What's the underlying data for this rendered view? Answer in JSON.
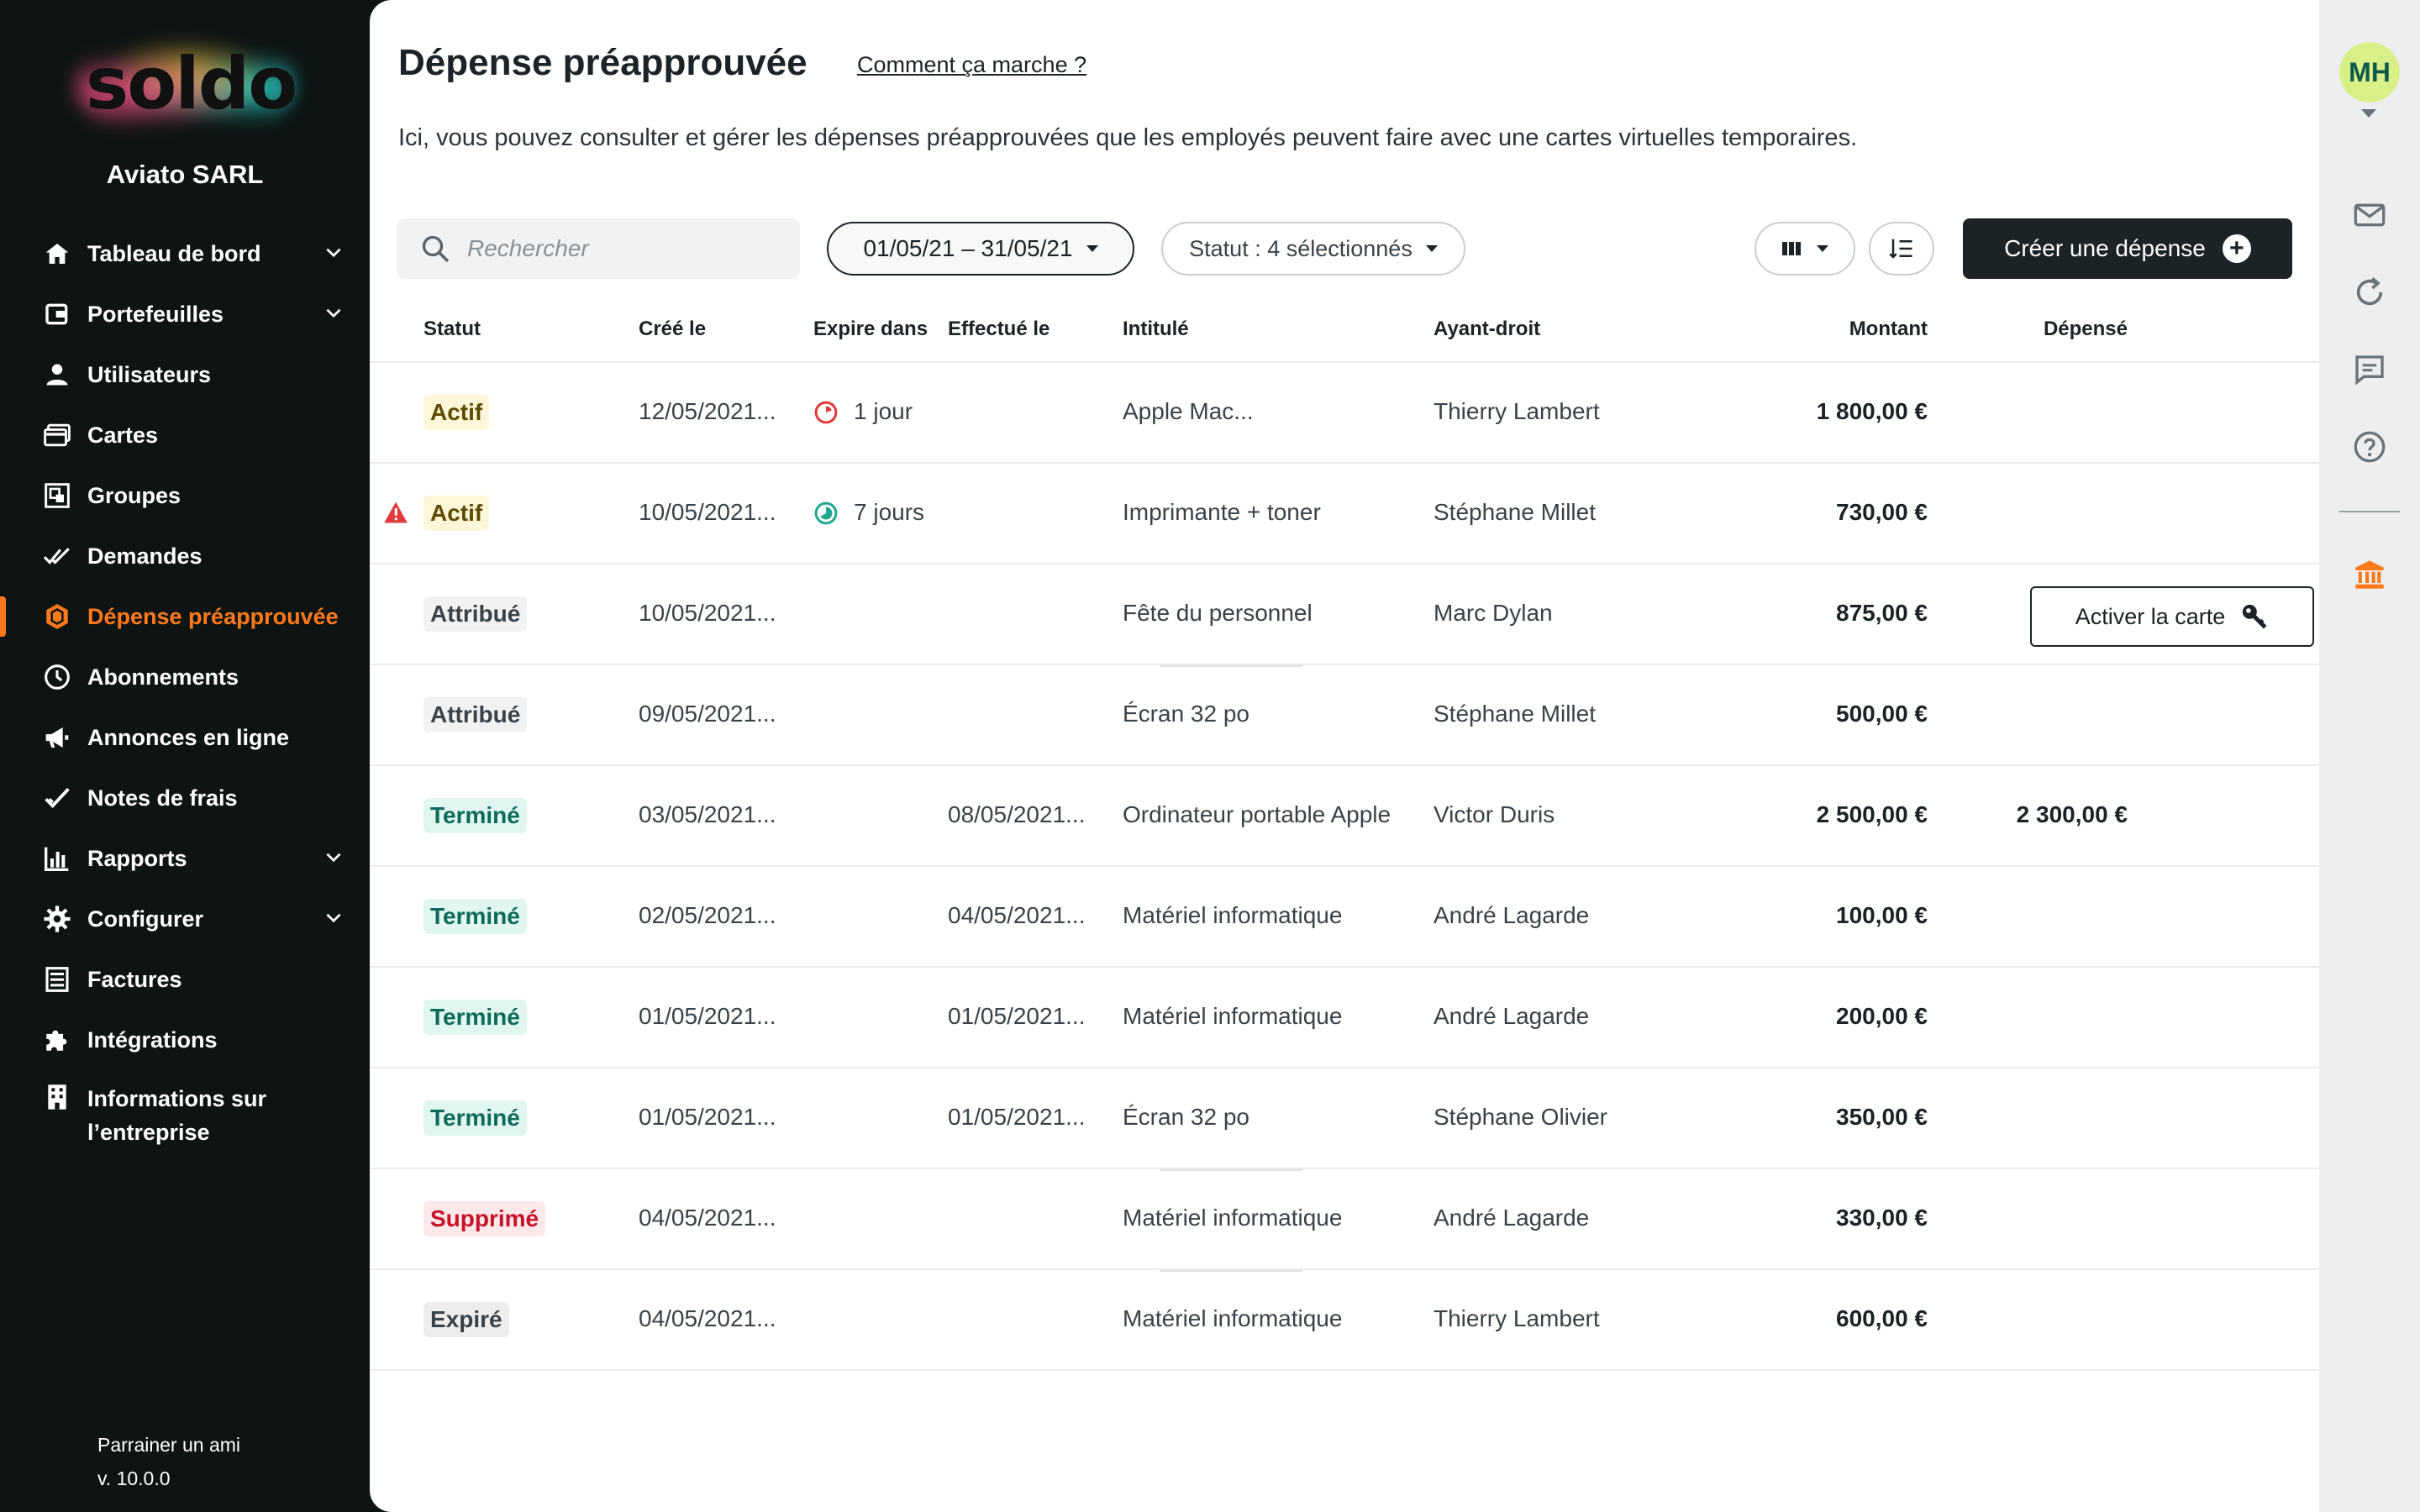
{
  "sidebar": {
    "logo": "soldo",
    "company": "Aviato SARL",
    "items": [
      {
        "label": "Tableau de bord",
        "icon": "home-icon"
      },
      {
        "label": "Portefeuilles",
        "icon": "wallet-icon"
      },
      {
        "label": "Utilisateurs",
        "icon": "user-icon"
      },
      {
        "label": "Cartes",
        "icon": "cards-icon"
      },
      {
        "label": "Groupes",
        "icon": "groups-icon"
      },
      {
        "label": "Demandes",
        "icon": "double-check-icon"
      },
      {
        "label": "Dépense préapprouvée",
        "icon": "hexagon-icon"
      },
      {
        "label": "Abonnements",
        "icon": "clock-icon"
      },
      {
        "label": "Annonces en ligne",
        "icon": "megaphone-icon"
      },
      {
        "label": "Notes de frais",
        "icon": "check-icon"
      },
      {
        "label": "Rapports",
        "icon": "bar-chart-icon"
      },
      {
        "label": "Configurer",
        "icon": "gear-icon"
      },
      {
        "label": "Factures",
        "icon": "invoice-icon"
      },
      {
        "label": "Intégrations",
        "icon": "puzzle-icon"
      },
      {
        "label": "Informations sur l’entreprise",
        "icon": "building-icon"
      }
    ],
    "footer": {
      "refer": "Parrainer un ami",
      "version": "v. 10.0.0"
    }
  },
  "header": {
    "title": "Dépense préapprouvée",
    "help_link": "Comment ça marche ?",
    "description": "Ici, vous pouvez consulter et gérer les dépenses préapprouvées que les employés peuvent faire avec une cartes virtuelles temporaires."
  },
  "toolbar": {
    "search_placeholder": "Rechercher",
    "date_range": "01/05/21 – 31/05/21",
    "status_filter": "Statut : 4 sélectionnés",
    "create_label": "Créer une dépense"
  },
  "table": {
    "columns": {
      "status": "Statut",
      "created": "Créé le",
      "expires": "Expire dans",
      "done": "Effectué le",
      "title": "Intitulé",
      "holder": "Ayant-droit",
      "amount": "Montant",
      "spent": "Dépensé"
    },
    "activate_label": "Activer la carte",
    "rows": [
      {
        "status": "Actif",
        "created": "12/05/2021...",
        "expires": "1 jour",
        "done": "",
        "title": "Apple Mac...",
        "holder": "Thierry Lambert",
        "amount": "1 800,00 €",
        "spent": ""
      },
      {
        "status": "Actif",
        "created": "10/05/2021...",
        "expires": "7 jours",
        "done": "",
        "title": "Imprimante + toner",
        "holder": "Stéphane Millet",
        "amount": "730,00 €",
        "spent": ""
      },
      {
        "status": "Attribué",
        "created": "10/05/2021...",
        "expires": "",
        "done": "",
        "title": "Fête du personnel",
        "holder": "Marc Dylan",
        "amount": "875,00 €",
        "spent": ""
      },
      {
        "status": "Attribué",
        "created": "09/05/2021...",
        "expires": "",
        "done": "",
        "title": "Écran 32 po",
        "holder": "Stéphane Millet",
        "amount": "500,00 €",
        "spent": ""
      },
      {
        "status": "Terminé",
        "created": "03/05/2021...",
        "expires": "",
        "done": "08/05/2021...",
        "title": "Ordinateur portable Apple",
        "holder": "Victor Duris",
        "amount": "2 500,00 €",
        "spent": "2 300,00 €"
      },
      {
        "status": "Terminé",
        "created": "02/05/2021...",
        "expires": "",
        "done": "04/05/2021...",
        "title": "Matériel informatique",
        "holder": "André Lagarde",
        "amount": "100,00 €",
        "spent": ""
      },
      {
        "status": "Terminé",
        "created": "01/05/2021...",
        "expires": "",
        "done": "01/05/2021...",
        "title": "Matériel informatique",
        "holder": "André Lagarde",
        "amount": "200,00 €",
        "spent": ""
      },
      {
        "status": "Terminé",
        "created": "01/05/2021...",
        "expires": "",
        "done": "01/05/2021...",
        "title": "Écran 32 po",
        "holder": "Stéphane Olivier",
        "amount": "350,00 €",
        "spent": ""
      },
      {
        "status": "Supprimé",
        "created": "04/05/2021...",
        "expires": "",
        "done": "",
        "title": "Matériel informatique",
        "holder": "André Lagarde",
        "amount": "330,00 €",
        "spent": ""
      },
      {
        "status": "Expiré",
        "created": "04/05/2021...",
        "expires": "",
        "done": "",
        "title": "Matériel informatique",
        "holder": "Thierry Lambert",
        "amount": "600,00 €",
        "spent": ""
      }
    ]
  },
  "rail": {
    "avatar_initials": "MH"
  },
  "colors": {
    "accent": "#ff7a1a",
    "sidebar_bg": "#0e1414",
    "primary_button": "#1c2326"
  }
}
